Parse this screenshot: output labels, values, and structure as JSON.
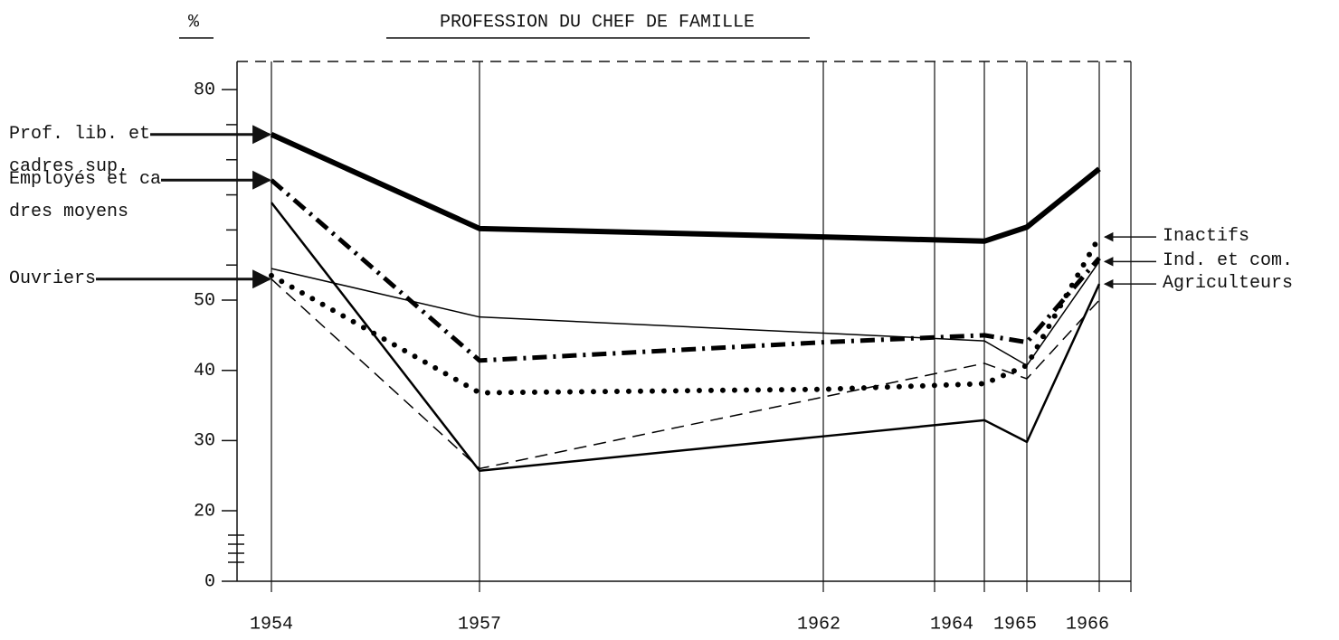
{
  "chart_data": {
    "type": "line",
    "title": "PROFESSION DU CHEF DE FAMILLE",
    "y_label": "%",
    "categories": [
      "1954",
      "1957",
      "1962",
      "1964",
      "1965",
      "1966"
    ],
    "ylim": [
      0,
      84
    ],
    "yticks": [
      0,
      20,
      30,
      40,
      50,
      80
    ],
    "yminor": [
      55,
      60,
      65,
      70,
      75
    ],
    "axis_break": [
      0,
      20
    ],
    "series": [
      {
        "name": "Prof. lib. et\ncadres sup.",
        "color": "#000000",
        "style": "solid",
        "width": 6,
        "side": "left",
        "values": [
          73.6,
          60.2,
          59.0,
          58.4,
          60.4,
          68.7
        ]
      },
      {
        "name": "Employés et ca\ndres moyens",
        "color": "#000000",
        "style": "dashdot",
        "width": 5,
        "side": "left",
        "values": [
          67.1,
          41.4,
          44.0,
          45.0,
          44.0,
          56.0
        ]
      },
      {
        "name": "Ouvriers",
        "color": "#000000",
        "style": "dashed",
        "width": 1.5,
        "side": "left",
        "values": [
          53.0,
          26.0,
          36.2,
          41.0,
          38.8,
          50.0
        ]
      },
      {
        "name": "Inactifs",
        "color": "#000000",
        "style": "dotted",
        "width": 6,
        "side": "right",
        "values": [
          53.5,
          36.8,
          37.3,
          38.1,
          40.7,
          59.0
        ]
      },
      {
        "name": "Ind. et com.",
        "color": "#000000",
        "style": "solid",
        "width": 1.5,
        "side": "right",
        "values": [
          54.5,
          47.6,
          45.3,
          44.2,
          40.7,
          55.5
        ]
      },
      {
        "name": "Agriculteurs",
        "color": "#000000",
        "style": "solid",
        "width": 2.5,
        "side": "right",
        "values": [
          63.9,
          25.7,
          30.6,
          32.9,
          29.8,
          52.3
        ]
      }
    ]
  }
}
